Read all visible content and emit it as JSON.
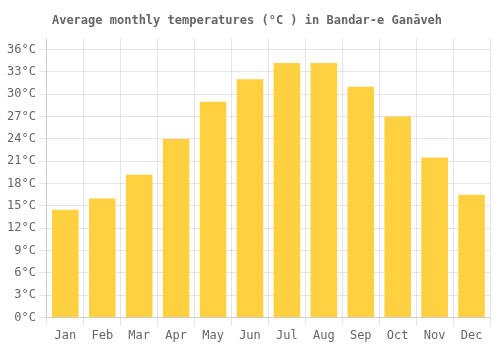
{
  "chart_data": {
    "type": "bar",
    "title": "Average monthly temperatures (°C ) in Bandar-e Ganāveh",
    "categories": [
      "Jan",
      "Feb",
      "Mar",
      "Apr",
      "May",
      "Jun",
      "Jul",
      "Aug",
      "Sep",
      "Oct",
      "Nov",
      "Dec"
    ],
    "values": [
      14.5,
      16.0,
      19.2,
      24.0,
      29.0,
      32.0,
      34.2,
      34.2,
      31.0,
      27.0,
      21.5,
      16.5
    ],
    "color": "#FFD040",
    "ylim": [
      0,
      37.5
    ],
    "yticks": [
      {
        "value": 0,
        "label": "0°C"
      },
      {
        "value": 3,
        "label": "3°C"
      },
      {
        "value": 6,
        "label": "6°C"
      },
      {
        "value": 9,
        "label": "9°C"
      },
      {
        "value": 12,
        "label": "12°C"
      },
      {
        "value": 15,
        "label": "15°C"
      },
      {
        "value": 18,
        "label": "18°C"
      },
      {
        "value": 21,
        "label": "21°C"
      },
      {
        "value": 24,
        "label": "24°C"
      },
      {
        "value": 27,
        "label": "27°C"
      },
      {
        "value": 30,
        "label": "30°C"
      },
      {
        "value": 33,
        "label": "33°C"
      },
      {
        "value": 36,
        "label": "36°C"
      }
    ],
    "grid": true
  }
}
